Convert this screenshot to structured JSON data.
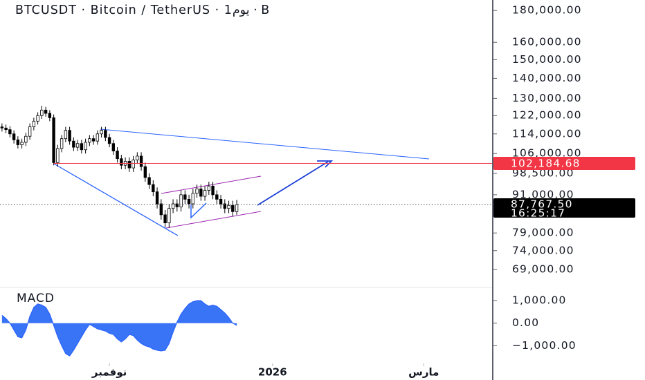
{
  "chart_data": [
    {
      "type": "candlestick",
      "title": "BTCUSDT · Bitcoin / TetherUS · 1يوم · B",
      "x": [
        0,
        1,
        2,
        3,
        4,
        5,
        6,
        7,
        8,
        9,
        10,
        11,
        12,
        13,
        14,
        15,
        16,
        17,
        18,
        19,
        20,
        21,
        22,
        23,
        24,
        25,
        26,
        27,
        28,
        29,
        30,
        31,
        32,
        33,
        34,
        35,
        36,
        37,
        38,
        39,
        40,
        41,
        42,
        43,
        44,
        45,
        46,
        47,
        48,
        49,
        50,
        51,
        52,
        53,
        54,
        55,
        56,
        57,
        58,
        59
      ],
      "open": [
        117000,
        116500,
        115800,
        114000,
        111500,
        109500,
        110500,
        113000,
        117000,
        119500,
        122000,
        124500,
        123000,
        121000,
        102500,
        108000,
        112000,
        115500,
        111000,
        108500,
        110000,
        107500,
        110500,
        112000,
        111000,
        114000,
        115500,
        112500,
        110000,
        107000,
        104000,
        101500,
        103000,
        100500,
        103500,
        105000,
        101000,
        97000,
        94500,
        92000,
        88000,
        84500,
        82000,
        86500,
        88000,
        87000,
        91000,
        89500,
        88000,
        91500,
        93000,
        90500,
        92500,
        94000,
        91000,
        89500,
        88000,
        86500,
        87500,
        85500
      ],
      "high": [
        118500,
        118000,
        117300,
        115500,
        113000,
        112000,
        114500,
        118500,
        121000,
        123500,
        126500,
        126000,
        124500,
        122500,
        109500,
        113500,
        117000,
        117000,
        112500,
        111500,
        111500,
        112000,
        113500,
        113500,
        115500,
        117000,
        117000,
        114000,
        111500,
        108500,
        105500,
        104500,
        104500,
        105000,
        106500,
        106500,
        102500,
        98500,
        96000,
        93500,
        89500,
        86000,
        88000,
        89500,
        89500,
        92500,
        92500,
        91000,
        93000,
        94500,
        94500,
        94000,
        95500,
        95500,
        92500,
        91000,
        89500,
        89000,
        89000,
        89300
      ],
      "low": [
        115000,
        114300,
        112500,
        110000,
        108000,
        108000,
        109000,
        111500,
        115500,
        118000,
        120500,
        121500,
        119500,
        101500,
        101000,
        106500,
        110500,
        109500,
        107000,
        107000,
        106000,
        106000,
        109000,
        109500,
        109500,
        112500,
        111000,
        108500,
        105500,
        102500,
        100000,
        100000,
        99000,
        99000,
        102000,
        99500,
        95500,
        93000,
        90500,
        86500,
        83000,
        80600,
        80500,
        85000,
        85500,
        85500,
        88000,
        86500,
        86500,
        90000,
        89000,
        89000,
        91000,
        89500,
        88000,
        86500,
        85000,
        85000,
        84000,
        84500
      ],
      "close": [
        116500,
        115800,
        114000,
        111500,
        109500,
        110500,
        113000,
        117000,
        119500,
        122000,
        124500,
        123000,
        121000,
        102500,
        108000,
        112000,
        115500,
        111000,
        108500,
        110000,
        107500,
        110500,
        112000,
        111000,
        114000,
        115500,
        112500,
        110000,
        107000,
        104000,
        101500,
        103000,
        100500,
        103500,
        105000,
        101000,
        97000,
        94500,
        92000,
        88000,
        84500,
        82000,
        86500,
        88000,
        87000,
        91000,
        89500,
        88000,
        91500,
        93000,
        90500,
        92500,
        94000,
        91000,
        89500,
        88000,
        86500,
        87500,
        85500,
        87767.5
      ],
      "up_color": "#ffffff",
      "down_color": "#000000",
      "xlim": [
        -0.5,
        123
      ],
      "ylim": [
        64750,
        187100
      ],
      "log_scale": true,
      "yticks": [
        {
          "value": 180000,
          "label": "180,000.00"
        },
        {
          "value": 160000,
          "label": "160,000.00"
        },
        {
          "value": 150000,
          "label": "150,000.00"
        },
        {
          "value": 140000,
          "label": "140,000.00"
        },
        {
          "value": 130000,
          "label": "130,000.00"
        },
        {
          "value": 122000,
          "label": "122,000.00"
        },
        {
          "value": 114000,
          "label": "114,000.00"
        },
        {
          "value": 106000,
          "label": "106,000.00"
        },
        {
          "value": 98500,
          "label": "98,500.00"
        },
        {
          "value": 91000,
          "label": "91,000.00"
        },
        {
          "value": 79000,
          "label": "79,000.00"
        },
        {
          "value": 74000,
          "label": "74,000.00"
        },
        {
          "value": 69000,
          "label": "69,000.00"
        }
      ],
      "price_labels": [
        {
          "value": 102184.68,
          "label": "102,184.68",
          "color": "#f23645"
        },
        {
          "value": 87767.5,
          "label": "87,767.50",
          "sublabel": "16:25:17",
          "color": "#000000"
        }
      ]
    },
    {
      "type": "area",
      "title": "MACD",
      "x": [
        0,
        1,
        2,
        3,
        4,
        5,
        6,
        7,
        8,
        9,
        10,
        11,
        12,
        13,
        14,
        15,
        16,
        17,
        18,
        19,
        20,
        21,
        22,
        23,
        24,
        25,
        26,
        27,
        28,
        29,
        30,
        31,
        32,
        33,
        34,
        35,
        36,
        37,
        38,
        39,
        40,
        41,
        42,
        43,
        44,
        45,
        46,
        47,
        48,
        49,
        50,
        51,
        52,
        53,
        54,
        55,
        56,
        57,
        58,
        59
      ],
      "values": [
        350,
        200,
        0,
        -300,
        -600,
        -650,
        -300,
        300,
        700,
        850,
        800,
        700,
        400,
        -100,
        -600,
        -1000,
        -1350,
        -1450,
        -1200,
        -900,
        -600,
        -300,
        -50,
        -150,
        -250,
        -300,
        -350,
        -450,
        -500,
        -700,
        -830,
        -700,
        -500,
        -550,
        -750,
        -900,
        -1000,
        -1050,
        -1150,
        -1200,
        -1230,
        -1200,
        -900,
        -400,
        50,
        400,
        650,
        850,
        950,
        1000,
        1000,
        850,
        750,
        800,
        750,
        600,
        450,
        250,
        0,
        -100
      ],
      "color": "#2f6df6",
      "xlim": [
        -0.5,
        123
      ],
      "ylim": [
        -1754,
        1523
      ],
      "yticks": [
        {
          "value": 1000,
          "label": "1,000.00"
        },
        {
          "value": 0,
          "label": "0.00"
        },
        {
          "value": -1000,
          "label": "−1,000.00"
        }
      ],
      "xticks": [
        {
          "value": 27,
          "label": "نوفمبر"
        },
        {
          "value": 68,
          "label": "2026"
        },
        {
          "value": 106,
          "label": "مارس"
        }
      ]
    }
  ]
}
